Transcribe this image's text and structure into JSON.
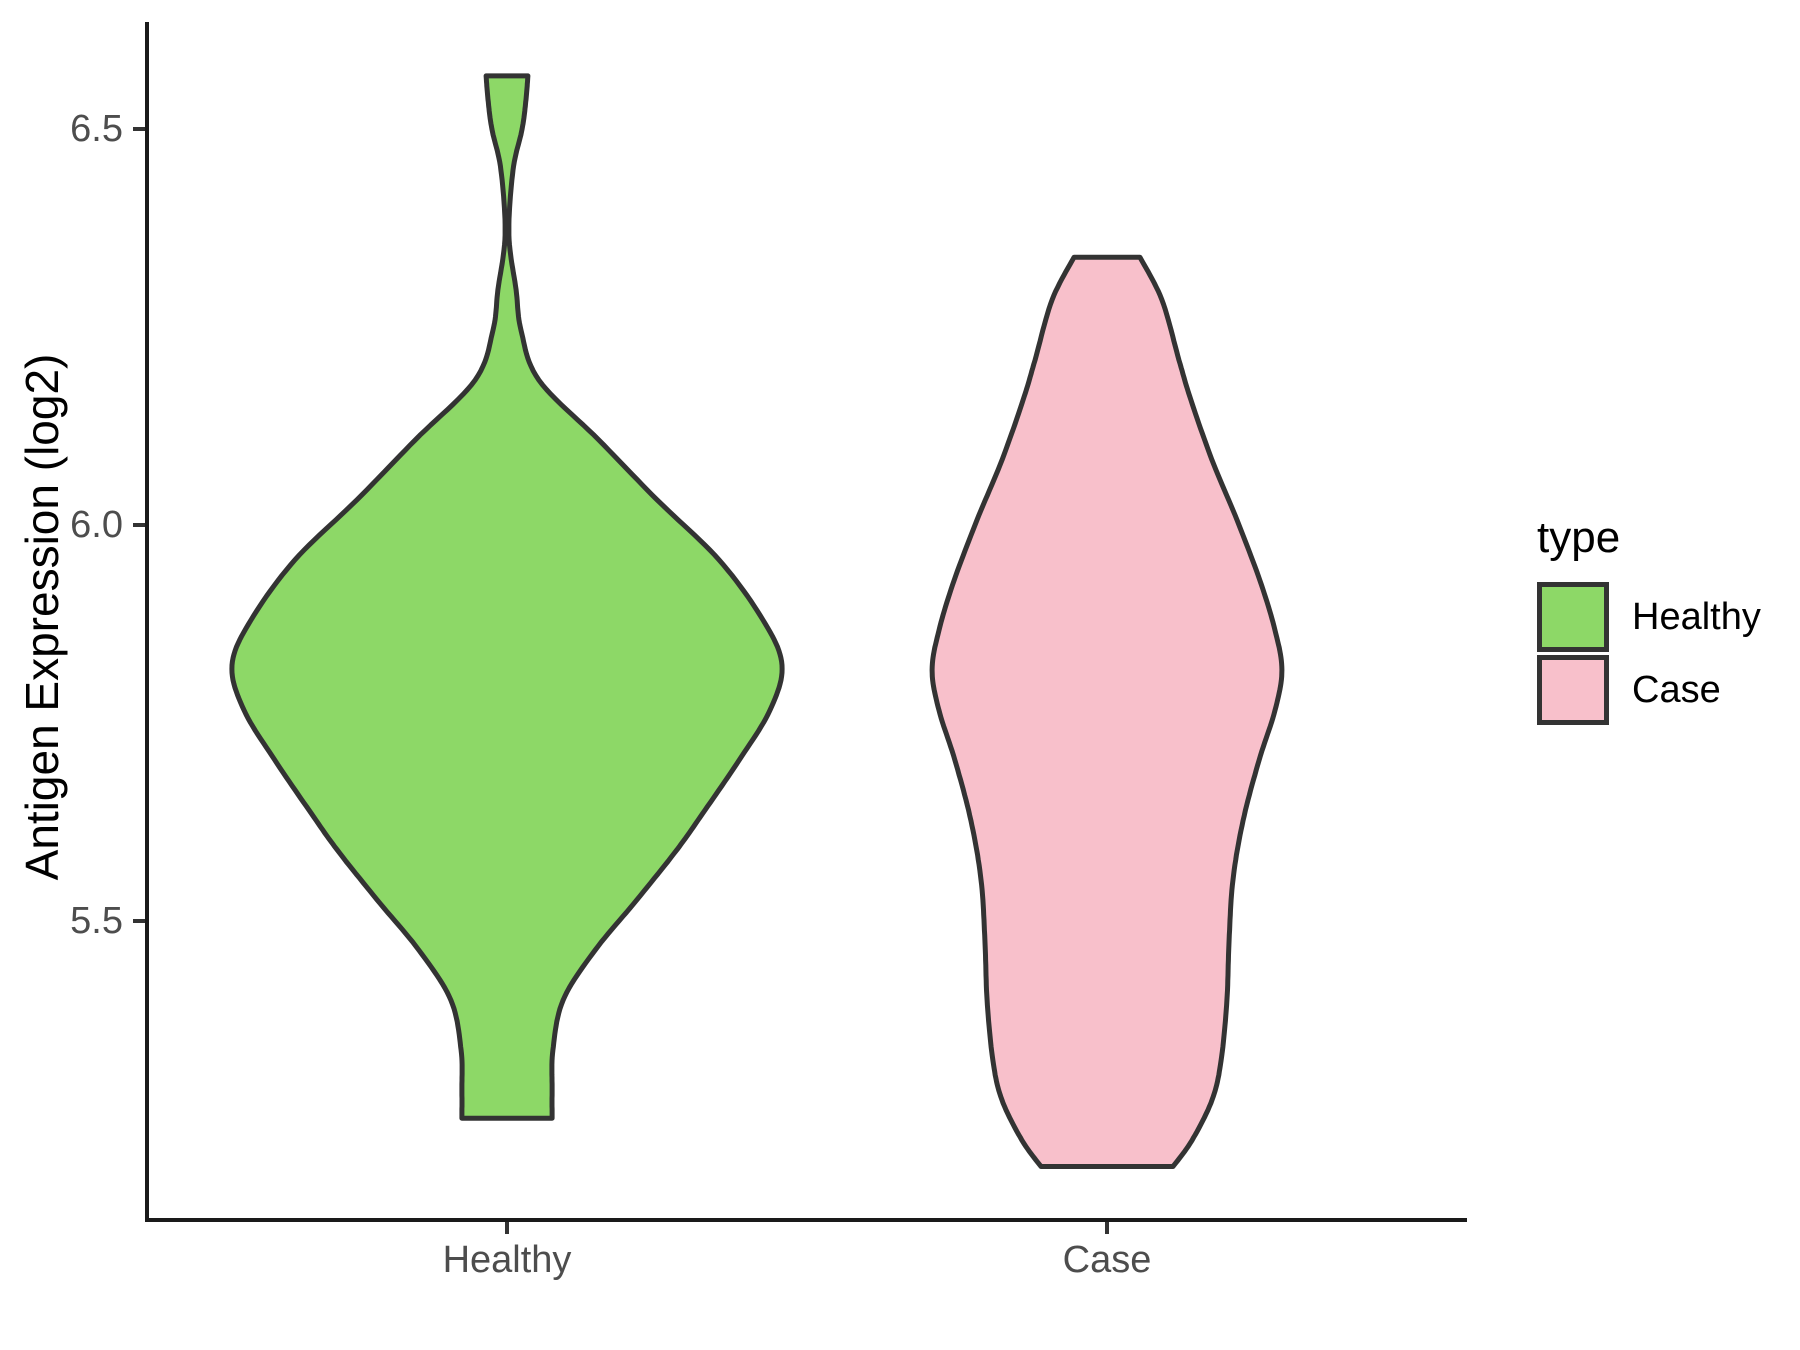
{
  "chart_data": {
    "type": "violin",
    "title": "",
    "xlabel": "",
    "ylabel": "Antigen Expression (log2)",
    "categories": [
      "Healthy",
      "Case"
    ],
    "y_ticks": [
      {
        "value": 6.5,
        "label": "6.5"
      },
      {
        "value": 6.0,
        "label": "6.0"
      },
      {
        "value": 5.5,
        "label": "5.5"
      }
    ],
    "ylim": [
      5.12,
      6.64
    ],
    "grid": false,
    "legend": {
      "title": "type",
      "position": "right",
      "entries": [
        {
          "label": "Healthy",
          "color": "#8dd867"
        },
        {
          "label": "Case",
          "color": "#f8c0cb"
        }
      ]
    },
    "style": {
      "outline_color": "#333333",
      "axis_color": "#1a1a1a",
      "tick_label_color": "#4d4d4d",
      "background": "#ffffff"
    },
    "series": [
      {
        "name": "Healthy",
        "fill": "#8dd867",
        "value_range": [
          5.25,
          6.57
        ],
        "widest_at": 5.82,
        "density_profile": [
          [
            6.567,
            0.076
          ],
          [
            6.537,
            0.069
          ],
          [
            6.5,
            0.055
          ],
          [
            6.448,
            0.022
          ],
          [
            6.366,
            0.007
          ],
          [
            6.297,
            0.033
          ],
          [
            6.246,
            0.051
          ],
          [
            6.183,
            0.116
          ],
          [
            6.107,
            0.335
          ],
          [
            6.032,
            0.545
          ],
          [
            5.956,
            0.771
          ],
          [
            5.88,
            0.931
          ],
          [
            5.823,
            1.0
          ],
          [
            5.766,
            0.956
          ],
          [
            5.703,
            0.844
          ],
          [
            5.64,
            0.72
          ],
          [
            5.59,
            0.618
          ],
          [
            5.527,
            0.473
          ],
          [
            5.463,
            0.32
          ],
          [
            5.4,
            0.204
          ],
          [
            5.337,
            0.167
          ],
          [
            5.287,
            0.164
          ],
          [
            5.251,
            0.164
          ]
        ]
      },
      {
        "name": "Case",
        "fill": "#f8c0cb",
        "value_range": [
          5.19,
          6.34
        ],
        "widest_at": 5.82,
        "density_profile": [
          [
            6.338,
            0.12
          ],
          [
            6.284,
            0.2
          ],
          [
            6.208,
            0.262
          ],
          [
            6.158,
            0.305
          ],
          [
            6.082,
            0.382
          ],
          [
            6.006,
            0.473
          ],
          [
            5.93,
            0.556
          ],
          [
            5.867,
            0.611
          ],
          [
            5.817,
            0.636
          ],
          [
            5.766,
            0.611
          ],
          [
            5.703,
            0.553
          ],
          [
            5.627,
            0.495
          ],
          [
            5.552,
            0.458
          ],
          [
            5.476,
            0.444
          ],
          [
            5.4,
            0.436
          ],
          [
            5.324,
            0.415
          ],
          [
            5.274,
            0.382
          ],
          [
            5.223,
            0.309
          ],
          [
            5.19,
            0.24
          ]
        ]
      }
    ]
  }
}
